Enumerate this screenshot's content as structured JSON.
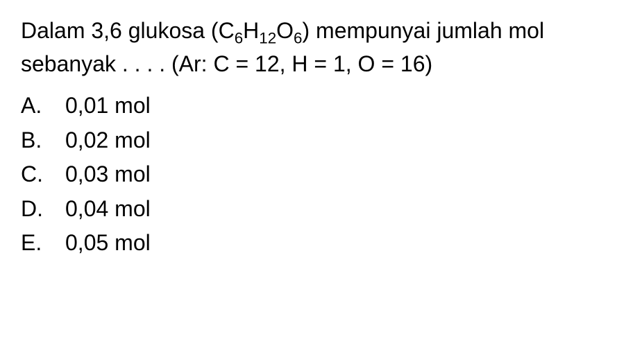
{
  "question": {
    "text_before_formula": "Dalam 3,6 glukosa (C",
    "sub1": "6",
    "text_mid1": "H",
    "sub2": "12",
    "text_mid2": "O",
    "sub3": "6",
    "text_after_formula": ") mempunyai jumlah mol sebanyak . . . . (Ar: C = 12, H = 1, O = 16)",
    "font_size": 32,
    "text_color": "#000000"
  },
  "options": [
    {
      "letter": "A.",
      "value": "0,01 mol"
    },
    {
      "letter": "B.",
      "value": "0,02 mol"
    },
    {
      "letter": "C.",
      "value": "0,03 mol"
    },
    {
      "letter": "D.",
      "value": "0,04 mol"
    },
    {
      "letter": "E.",
      "value": "0,05 mol"
    }
  ],
  "background_color": "#ffffff"
}
